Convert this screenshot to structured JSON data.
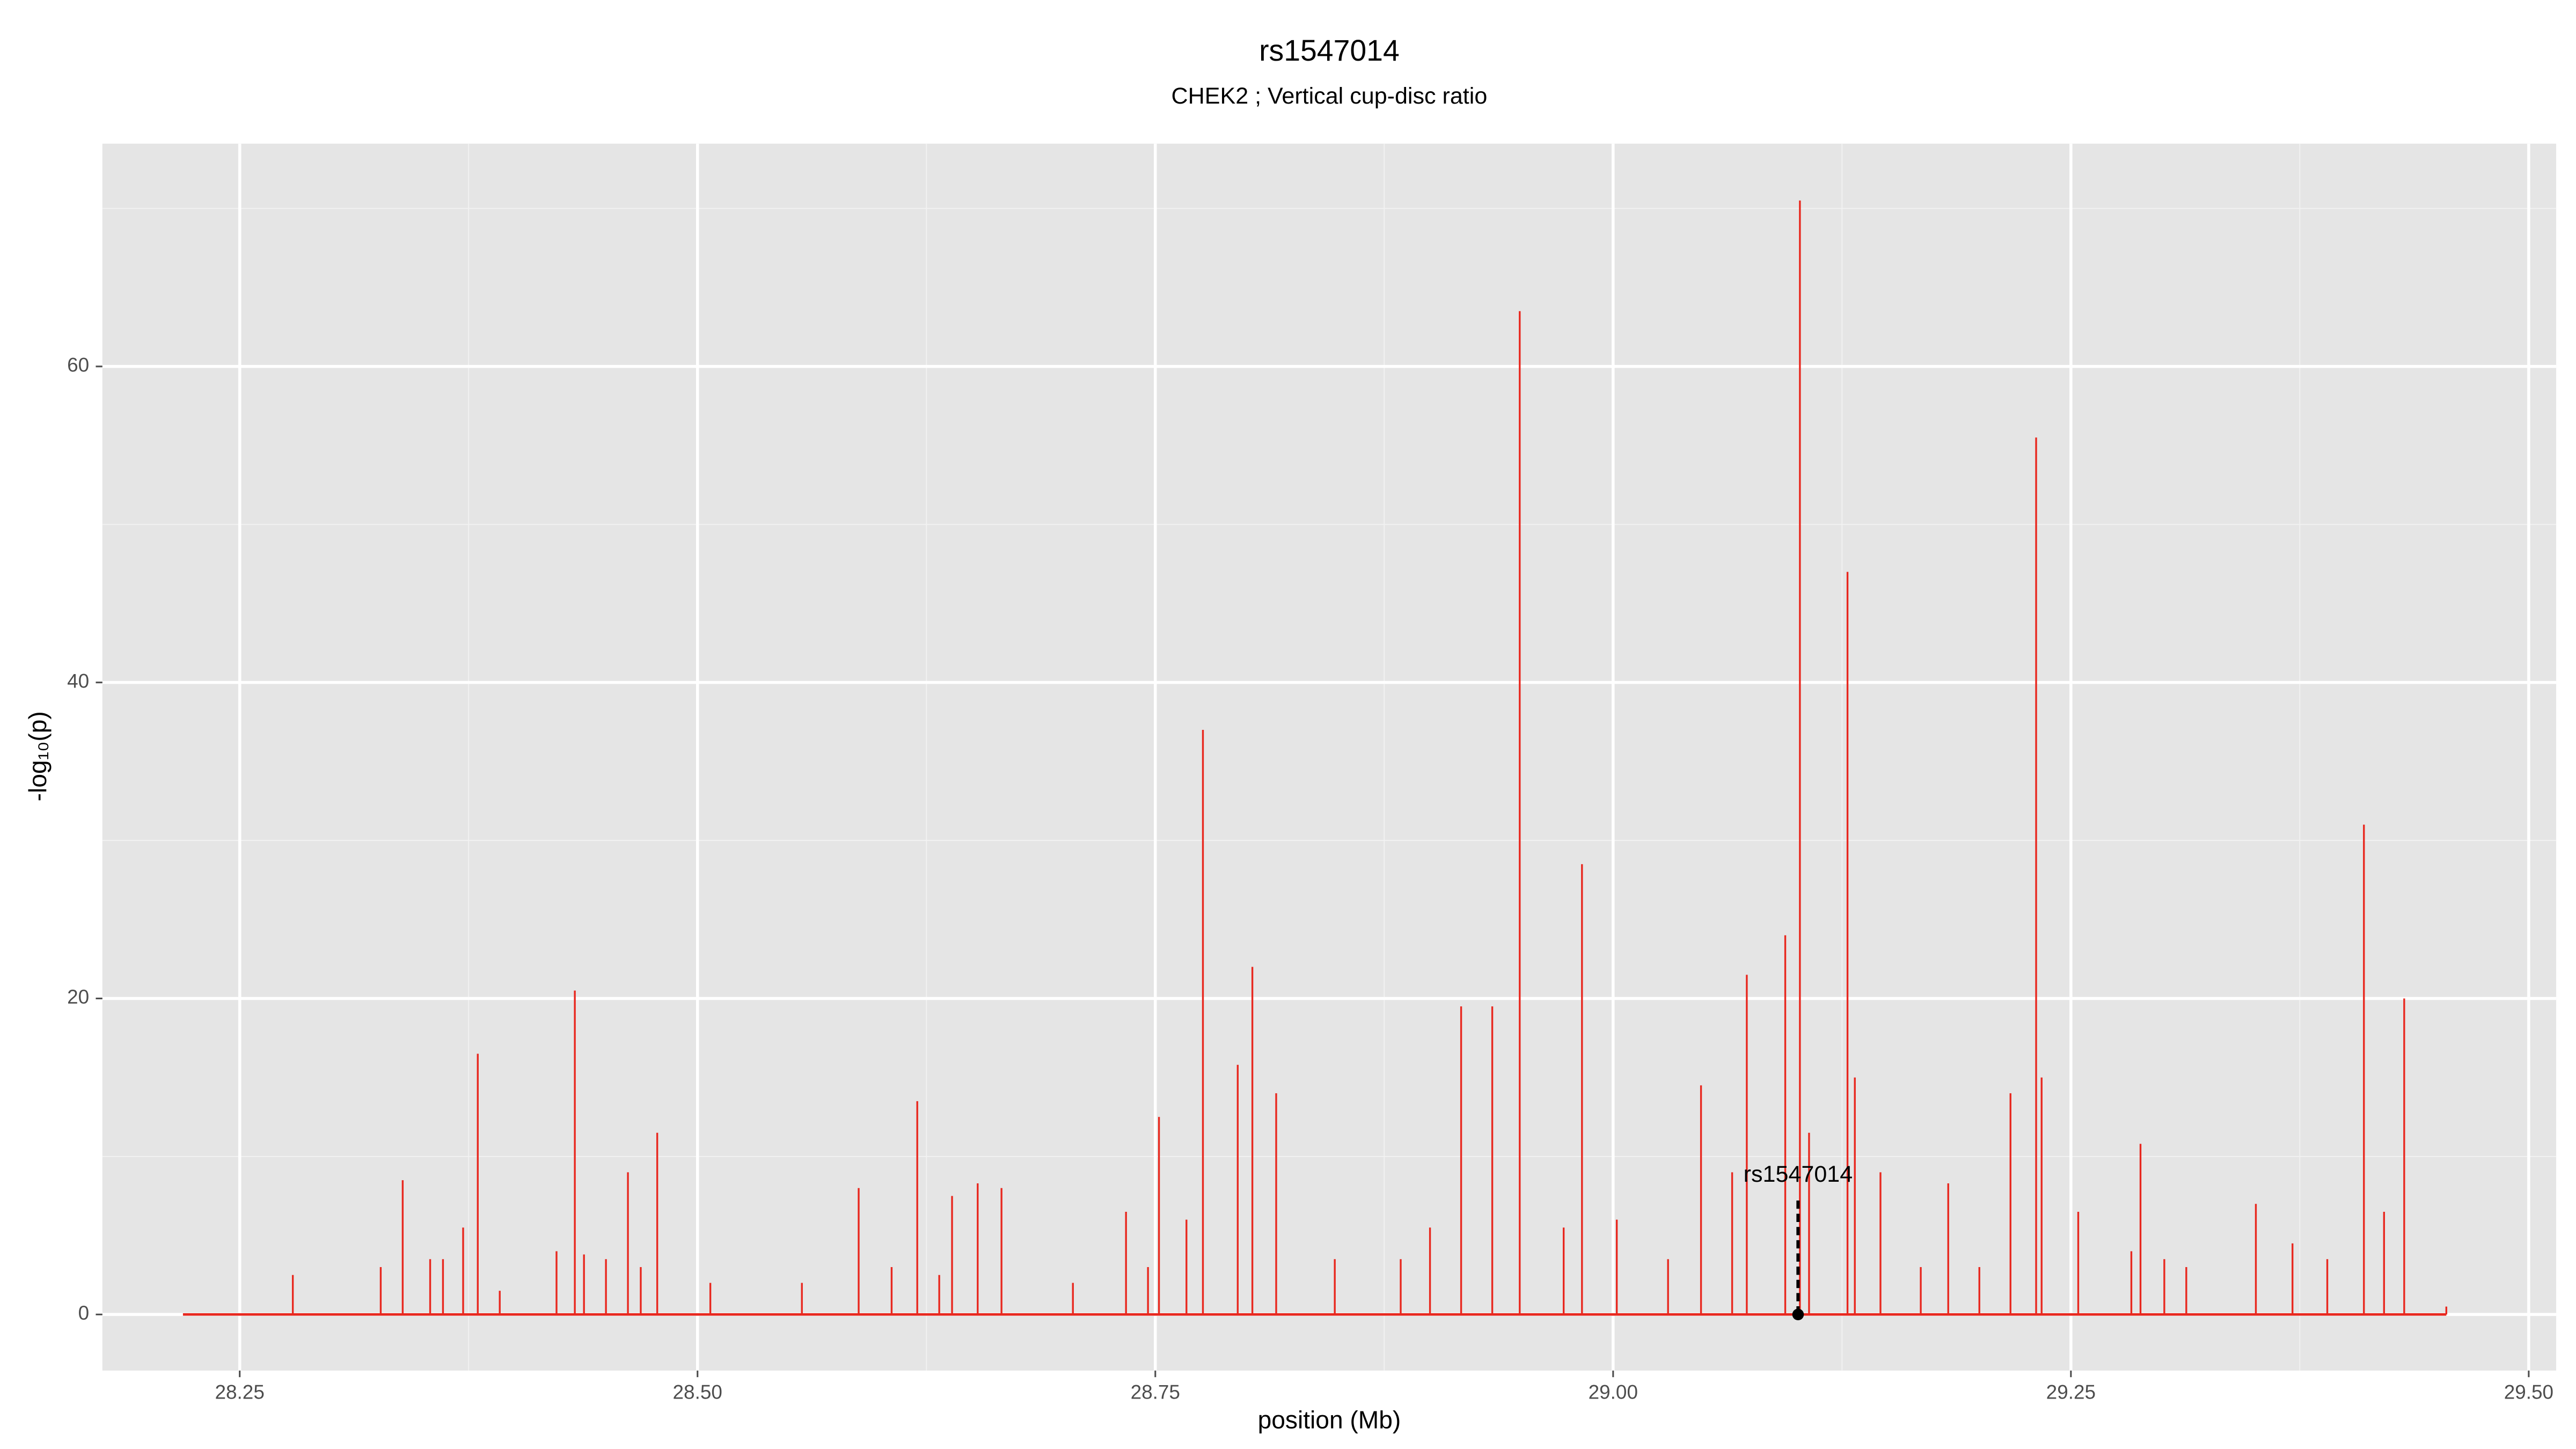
{
  "chart_data": {
    "type": "spike",
    "title": "rs1547014",
    "subtitle": "CHEK2 ; Vertical cup-disc ratio",
    "x_label": "position (Mb)",
    "y_label": "-log₁₀(p)",
    "color": "#e8281f",
    "x": [
      28.219,
      28.279,
      28.327,
      28.339,
      28.354,
      28.361,
      28.372,
      28.38,
      28.392,
      28.423,
      28.433,
      28.438,
      28.45,
      28.462,
      28.469,
      28.478,
      28.507,
      28.557,
      28.588,
      28.606,
      28.62,
      28.632,
      28.639,
      28.653,
      28.666,
      28.705,
      28.734,
      28.746,
      28.752,
      28.767,
      28.776,
      28.795,
      28.803,
      28.816,
      28.848,
      28.884,
      28.9,
      28.917,
      28.934,
      28.949,
      28.973,
      28.983,
      29.002,
      29.03,
      29.048,
      29.065,
      29.073,
      29.094,
      29.102,
      29.107,
      29.128,
      29.132,
      29.146,
      29.168,
      29.183,
      29.2,
      29.217,
      29.231,
      29.234,
      29.254,
      29.283,
      29.288,
      29.301,
      29.313,
      29.351,
      29.371,
      29.39,
      29.41,
      29.421,
      29.432,
      29.455
    ],
    "values": [
      0,
      2.5,
      3,
      8.5,
      3.5,
      3.5,
      5.5,
      16.5,
      1.5,
      4,
      20.5,
      3.8,
      3.5,
      9,
      3,
      11.5,
      2,
      2,
      8,
      3,
      13.5,
      2.5,
      7.5,
      8.3,
      8,
      2,
      6.5,
      3,
      12.5,
      6,
      37,
      15.8,
      22,
      14,
      3.5,
      3.5,
      5.5,
      19.5,
      19.5,
      63.5,
      5.5,
      28.5,
      6,
      3.5,
      14.5,
      9,
      21.5,
      24,
      70.5,
      11.5,
      47,
      15,
      9,
      3,
      8.3,
      3,
      14,
      55.5,
      15,
      6.5,
      4,
      10.8,
      3.5,
      3,
      7,
      4.5,
      3.5,
      31,
      6.5,
      20,
      0.5
    ],
    "annotation": {
      "label": "rs1547014",
      "x": 29.101,
      "y": 0
    },
    "xlim": [
      28.175,
      29.515
    ],
    "ylim": [
      -3.55,
      74.1
    ],
    "xticks": [
      28.25,
      {
        "value": 28.5,
        "label": "28.50"
      },
      28.75,
      {
        "value": 29,
        "label": "29.00"
      },
      29.25,
      {
        "value": 29.5,
        "label": "29.50"
      }
    ],
    "yticks": [
      0,
      20,
      40,
      60
    ],
    "grid": true
  }
}
